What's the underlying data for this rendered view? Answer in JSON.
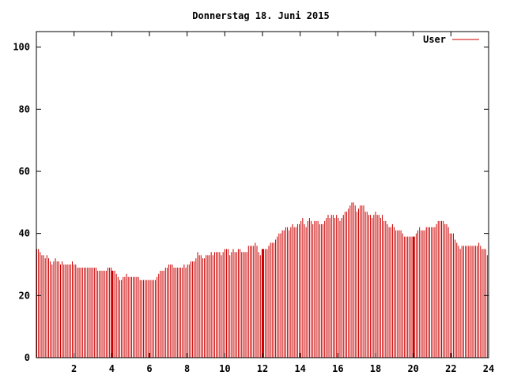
{
  "chart_data": {
    "type": "bar",
    "title": "Donnerstag 18. Juni 2015",
    "xlabel": "",
    "ylabel": "",
    "xlim": [
      0,
      24
    ],
    "ylim": [
      0,
      105
    ],
    "x_ticks": [
      2,
      4,
      6,
      8,
      10,
      12,
      14,
      16,
      18,
      20,
      22,
      24
    ],
    "y_ticks": [
      0,
      20,
      40,
      60,
      80,
      100
    ],
    "grid": false,
    "legend_position": "top-right",
    "series": [
      {
        "name": "User",
        "color": "#cc0000",
        "highlight_hours": [
          4,
          12,
          20
        ],
        "values": [
          35,
          35,
          34,
          33,
          33,
          32,
          33,
          32,
          31,
          30,
          31,
          32,
          31,
          31,
          30,
          31,
          30,
          30,
          30,
          30,
          30,
          31,
          30,
          30,
          29,
          29,
          29,
          29,
          29,
          29,
          29,
          29,
          29,
          29,
          29,
          29,
          28,
          28,
          28,
          28,
          28,
          28,
          29,
          29,
          29,
          28,
          28,
          27,
          26,
          25,
          25,
          26,
          26,
          27,
          26,
          26,
          26,
          26,
          26,
          26,
          26,
          25,
          25,
          25,
          25,
          25,
          25,
          25,
          25,
          25,
          25,
          26,
          27,
          28,
          28,
          28,
          29,
          29,
          30,
          30,
          30,
          29,
          29,
          29,
          29,
          29,
          29,
          30,
          29,
          30,
          30,
          31,
          31,
          31,
          32,
          34,
          33,
          33,
          32,
          32,
          33,
          33,
          33,
          34,
          33,
          34,
          34,
          34,
          34,
          33,
          34,
          35,
          35,
          35,
          33,
          34,
          35,
          34,
          34,
          35,
          35,
          34,
          34,
          34,
          34,
          36,
          36,
          36,
          36,
          37,
          36,
          34,
          33,
          35,
          35,
          35,
          35,
          36,
          37,
          37,
          37,
          38,
          39,
          40,
          40,
          41,
          41,
          42,
          42,
          41,
          42,
          43,
          42,
          42,
          43,
          43,
          44,
          45,
          43,
          42,
          44,
          45,
          44,
          43,
          44,
          44,
          44,
          43,
          43,
          43,
          44,
          45,
          46,
          45,
          46,
          46,
          45,
          46,
          45,
          44,
          45,
          46,
          47,
          47,
          48,
          49,
          50,
          50,
          49,
          47,
          48,
          49,
          49,
          49,
          47,
          47,
          46,
          46,
          45,
          46,
          47,
          46,
          46,
          45,
          46,
          44,
          44,
          43,
          42,
          42,
          43,
          42,
          41,
          41,
          41,
          41,
          40,
          39,
          39,
          39,
          39,
          39,
          39,
          39,
          40,
          41,
          42,
          41,
          41,
          41,
          42,
          42,
          42,
          42,
          42,
          42,
          43,
          44,
          44,
          44,
          44,
          43,
          43,
          42,
          40,
          40,
          40,
          38,
          37,
          36,
          35,
          36,
          36,
          36,
          36,
          36,
          36,
          36,
          36,
          36,
          36,
          37,
          36,
          35,
          35,
          35,
          33
        ]
      }
    ]
  }
}
